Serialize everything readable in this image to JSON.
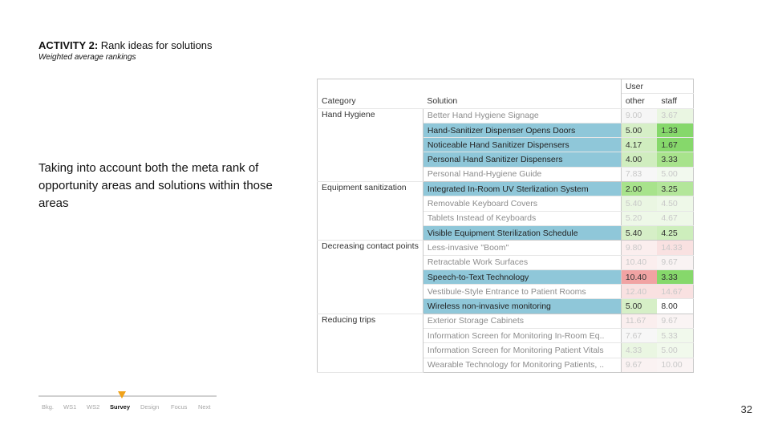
{
  "header": {
    "activity_bold": "ACTIVITY 2:",
    "activity_rest": " Rank ideas for solutions",
    "subtitle": "Weighted average rankings"
  },
  "body_text": "Taking into account both the meta rank of opportunity areas and solutions within those areas",
  "slide_number": "32",
  "nav": {
    "items": [
      {
        "label": "Bkg."
      },
      {
        "label": "WS1"
      },
      {
        "label": "WS2"
      },
      {
        "label": "Survey"
      },
      {
        "label": "Design"
      },
      {
        "label": "Focus"
      },
      {
        "label": "Next"
      }
    ],
    "active_index": 3,
    "marker_color": "#f0a21a"
  },
  "table": {
    "group_header": "User",
    "headers": {
      "category": "Category",
      "solution": "Solution",
      "other": "other",
      "staff": "staff"
    },
    "colors": {
      "highlight_row": "#8fc7d9",
      "green_strong": "#86d86b",
      "green_mid": "#b3e69a",
      "green_light": "#d6efc7",
      "green_faint": "#eaf6e2",
      "red_mid": "#f1a3a3",
      "red_faint": "#f9e6e6"
    },
    "groups": [
      {
        "category": "Hand Hygiene",
        "rows": [
          {
            "solution": "Better Hand Hygiene Signage",
            "highlight": false,
            "other": "9.00",
            "staff": "3.67",
            "other_bg": "#f6f6f6",
            "staff_bg": "#eaf6e2",
            "dim": true
          },
          {
            "solution": "Hand-Sanitizer Dispenser Opens Doors",
            "highlight": true,
            "other": "5.00",
            "staff": "1.33",
            "other_bg": "#d6efc7",
            "staff_bg": "#86d86b",
            "dim": false
          },
          {
            "solution": "Noticeable Hand Sanitizer Dispensers",
            "highlight": true,
            "other": "4.17",
            "staff": "1.67",
            "other_bg": "#d0edbf",
            "staff_bg": "#86d86b",
            "dim": false
          },
          {
            "solution": "Personal Hand Sanitizer Dispensers",
            "highlight": true,
            "other": "4.00",
            "staff": "3.33",
            "other_bg": "#d0edbf",
            "staff_bg": "#a8e38c",
            "dim": false
          },
          {
            "solution": "Personal Hand-Hygiene Guide",
            "highlight": false,
            "other": "7.83",
            "staff": "5.00",
            "other_bg": "#f7f7f7",
            "staff_bg": "#f2f9ee",
            "dim": true
          }
        ]
      },
      {
        "category": "Equipment sanitization",
        "rows": [
          {
            "solution": "Integrated In-Room UV Sterlization System",
            "highlight": true,
            "other": "2.00",
            "staff": "3.25",
            "other_bg": "#a8e38c",
            "staff_bg": "#b3e69a",
            "dim": false
          },
          {
            "solution": "Removable Keyboard Covers",
            "highlight": false,
            "other": "5.40",
            "staff": "4.50",
            "other_bg": "#eaf6e2",
            "staff_bg": "#eef8e8",
            "dim": true
          },
          {
            "solution": "Tablets Instead of Keyboards",
            "highlight": false,
            "other": "5.20",
            "staff": "4.67",
            "other_bg": "#eef8e8",
            "staff_bg": "#eef8e8",
            "dim": true
          },
          {
            "solution": "Visible Equipment Sterilization Schedule",
            "highlight": true,
            "other": "5.40",
            "staff": "4.25",
            "other_bg": "#d6efc7",
            "staff_bg": "#cdeebc",
            "dim": false
          }
        ]
      },
      {
        "category": "Decreasing contact points",
        "rows": [
          {
            "solution": "Less-invasive \"Boom\"",
            "highlight": false,
            "other": "9.80",
            "staff": "14.33",
            "other_bg": "#fbeeee",
            "staff_bg": "#f9e1e1",
            "dim": true
          },
          {
            "solution": "Retractable Work Surfaces",
            "highlight": false,
            "other": "10.40",
            "staff": "9.67",
            "other_bg": "#fbeeee",
            "staff_bg": "#f9f3f3",
            "dim": true
          },
          {
            "solution": "Speech-to-Text Technology",
            "highlight": true,
            "other": "10.40",
            "staff": "3.33",
            "other_bg": "#f1a3a3",
            "staff_bg": "#86d86b",
            "dim": false
          },
          {
            "solution": "Vestibule-Style Entrance to Patient Rooms",
            "highlight": false,
            "other": "12.40",
            "staff": "14.67",
            "other_bg": "#f9e1e1",
            "staff_bg": "#f9e1e1",
            "dim": true
          },
          {
            "solution": "Wireless non-invasive monitoring",
            "highlight": true,
            "other": "5.00",
            "staff": "8.00",
            "other_bg": "#d6efc7",
            "staff_bg": "#ffffff",
            "dim": false
          }
        ]
      },
      {
        "category": "Reducing trips",
        "rows": [
          {
            "solution": "Exterior Storage Cabinets",
            "highlight": false,
            "other": "11.67",
            "staff": "9.67",
            "other_bg": "#faeeee",
            "staff_bg": "#faf4f4",
            "dim": true
          },
          {
            "solution": "Information Screen for Monitoring In-Room Eq..",
            "highlight": false,
            "other": "7.67",
            "staff": "5.33",
            "other_bg": "#f7f7f7",
            "staff_bg": "#f1f9ec",
            "dim": true
          },
          {
            "solution": "Information Screen for Monitoring Patient Vitals",
            "highlight": false,
            "other": "4.33",
            "staff": "5.00",
            "other_bg": "#eaf6e2",
            "staff_bg": "#f1f9ec",
            "dim": true
          },
          {
            "solution": "Wearable Technology for Monitoring Patients, ..",
            "highlight": false,
            "other": "9.67",
            "staff": "10.00",
            "other_bg": "#faf2f2",
            "staff_bg": "#faf4f4",
            "dim": true
          }
        ]
      }
    ]
  }
}
